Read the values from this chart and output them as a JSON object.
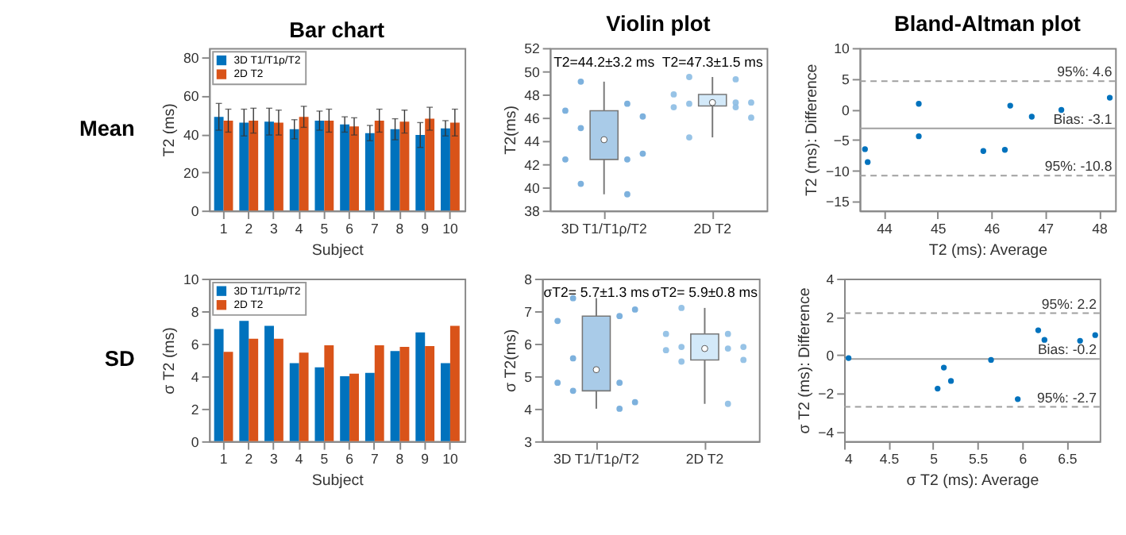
{
  "chart_data": [
    {
      "type": "bar",
      "title": "Bar chart",
      "xlabel": "Subject",
      "ylabel": "T2 (ms)",
      "annotations": [
        "Mean"
      ],
      "categories": [
        "1",
        "2",
        "3",
        "4",
        "5",
        "6",
        "7",
        "8",
        "9",
        "10"
      ],
      "ylim": [
        0,
        85
      ],
      "yticks": [
        0,
        20,
        40,
        60,
        80
      ],
      "legend": "top left",
      "grid": false,
      "series": [
        {
          "name": "3D T1/T1ρ/T2",
          "color": "#0072bd",
          "values": [
            49,
            46,
            46.5,
            42.5,
            47,
            45,
            40.5,
            42.5,
            39.5,
            43
          ],
          "errors": [
            7,
            7,
            7,
            5,
            5,
            4,
            4,
            5.5,
            6.5,
            4
          ]
        },
        {
          "name": "2D T2",
          "color": "#d95319",
          "values": [
            47,
            47,
            46,
            49,
            47,
            44,
            47,
            46.5,
            48,
            46
          ],
          "errors": [
            6,
            6.5,
            6.5,
            5.5,
            6,
            4.5,
            6,
            6,
            6,
            7
          ]
        }
      ]
    },
    {
      "type": "box",
      "title": "Violin plot",
      "ylabel": "T2(ms)",
      "categories": [
        "3D T1/T1ρ/T2",
        "2D T2"
      ],
      "ylim": [
        38,
        52
      ],
      "yticks": [
        38,
        40,
        42,
        44,
        46,
        48,
        50,
        52
      ],
      "colors": [
        "#a9cbe8",
        "#d3e9f9"
      ],
      "grid": false,
      "annotations": [
        "T2=44.2±3.2 ms",
        "T2=47.3±1.5 ms"
      ],
      "boxes": [
        {
          "low": 39.4,
          "q1": 42.4,
          "median": 44.1,
          "q3": 46.6,
          "high": 49.1
        },
        {
          "low": 44.3,
          "q1": 47,
          "median": 47.3,
          "q3": 48,
          "high": 49.5
        }
      ],
      "series": [
        {
          "type": "scatter",
          "color": "#6fa9d9",
          "x": [
            "3D T1/T1ρ/T2",
            "3D T1/T1ρ/T2",
            "3D T1/T1ρ/T2",
            "3D T1/T1ρ/T2",
            "3D T1/T1ρ/T2",
            "3D T1/T1ρ/T2",
            "3D T1/T1ρ/T2",
            "3D T1/T1ρ/T2",
            "3D T1/T1ρ/T2",
            "3D T1/T1ρ/T2"
          ],
          "values": [
            49.1,
            47.2,
            46.6,
            46.1,
            45.1,
            42.4,
            42.4,
            42.9,
            40.3,
            39.4
          ]
        },
        {
          "type": "scatter",
          "color": "#8cbde3",
          "x": [
            "2D T2",
            "2D T2",
            "2D T2",
            "2D T2",
            "2D T2",
            "2D T2",
            "2D T2",
            "2D T2",
            "2D T2",
            "2D T2"
          ],
          "values": [
            49.5,
            49.3,
            48,
            47.3,
            47.2,
            46.9,
            46.9,
            46,
            44.3,
            47.3
          ]
        }
      ]
    },
    {
      "type": "scatter",
      "title": "Bland-Altman plot",
      "xlabel": "T2 (ms): Average",
      "ylabel": "T2 (ms): Difference",
      "xlim": [
        43.55,
        48.3
      ],
      "xticks": [
        44,
        45,
        46,
        47,
        48
      ],
      "ylim": [
        -16.5,
        10
      ],
      "yticks": [
        -15,
        -10,
        -5,
        0,
        5,
        10
      ],
      "grid": false,
      "marker": "circle",
      "x": [
        43.65,
        43.7,
        44.65,
        44.65,
        45.85,
        46.25,
        46.35,
        46.75,
        47.3,
        48.2
      ],
      "values": [
        -6.5,
        -8.6,
        0.9,
        -4.4,
        -6.8,
        -6.6,
        0.6,
        -1.2,
        -0.1,
        1.9
      ],
      "color": "#0072bd",
      "ref_lines": [
        {
          "axis": "y",
          "value": 4.6,
          "label": "95%: 4.6",
          "line_style": "dashed",
          "color": "#a0a0a0"
        },
        {
          "axis": "y",
          "value": -3.1,
          "label": "Bias: -3.1",
          "line_style": "solid",
          "color": "#a0a0a0"
        },
        {
          "axis": "y",
          "value": -10.8,
          "label": "95%: -10.8",
          "line_style": "dashed",
          "color": "#a0a0a0"
        }
      ]
    },
    {
      "type": "bar",
      "xlabel": "Subject",
      "ylabel": "σ T2 (ms)",
      "annotations": [
        "SD"
      ],
      "categories": [
        "1",
        "2",
        "3",
        "4",
        "5",
        "6",
        "7",
        "8",
        "9",
        "10"
      ],
      "ylim": [
        0,
        10
      ],
      "yticks": [
        0,
        2,
        4,
        6,
        8,
        10
      ],
      "legend": "top left",
      "grid": false,
      "series": [
        {
          "name": "3D T1/T1ρ/T2",
          "color": "#0072bd",
          "values": [
            6.9,
            7.4,
            7.1,
            4.8,
            4.55,
            4.0,
            4.2,
            5.55,
            6.7,
            4.8
          ]
        },
        {
          "name": "2D T2",
          "color": "#d95319",
          "values": [
            5.5,
            6.3,
            6.3,
            5.45,
            5.9,
            4.15,
            5.9,
            5.8,
            5.85,
            7.1
          ]
        }
      ]
    },
    {
      "type": "box",
      "ylabel": "σ T2(ms)",
      "categories": [
        "3D T1/T1ρ/T2",
        "2D T2"
      ],
      "ylim": [
        3,
        8
      ],
      "yticks": [
        3,
        4,
        5,
        6,
        7,
        8
      ],
      "colors": [
        "#a9cbe8",
        "#d3e9f9"
      ],
      "grid": false,
      "annotations": [
        "σT2= 5.7±1.3 ms",
        "σT2= 5.9±0.8 ms"
      ],
      "boxes": [
        {
          "low": 4.0,
          "q1": 4.55,
          "median": 5.2,
          "q3": 6.85,
          "high": 7.4
        },
        {
          "low": 4.15,
          "q1": 5.5,
          "median": 5.85,
          "q3": 6.3,
          "high": 7.1
        }
      ],
      "series": [
        {
          "type": "scatter",
          "color": "#6fa9d9",
          "x": [
            "3D T1/T1ρ/T2",
            "3D T1/T1ρ/T2",
            "3D T1/T1ρ/T2",
            "3D T1/T1ρ/T2",
            "3D T1/T1ρ/T2",
            "3D T1/T1ρ/T2",
            "3D T1/T1ρ/T2",
            "3D T1/T1ρ/T2",
            "3D T1/T1ρ/T2",
            "3D T1/T1ρ/T2"
          ],
          "values": [
            7.4,
            6.85,
            6.7,
            7.05,
            5.55,
            4.8,
            4.8,
            4.2,
            4.55,
            4.0
          ]
        },
        {
          "type": "scatter",
          "color": "#8cbde3",
          "x": [
            "2D T2",
            "2D T2",
            "2D T2",
            "2D T2",
            "2D T2",
            "2D T2",
            "2D T2",
            "2D T2",
            "2D T2",
            "2D T2"
          ],
          "values": [
            7.1,
            6.3,
            6.3,
            5.9,
            5.9,
            5.85,
            5.8,
            5.5,
            5.45,
            4.15
          ]
        }
      ]
    },
    {
      "type": "scatter",
      "xlabel": "σ T2 (ms): Average",
      "ylabel": "σ T2 (ms): Difference",
      "xlim": [
        4,
        6.87
      ],
      "xticks": [
        4,
        4.5,
        5,
        5.5,
        6,
        6.5
      ],
      "ylim": [
        -4.5,
        4
      ],
      "yticks": [
        -4,
        -2,
        0,
        2,
        4
      ],
      "grid": false,
      "marker": "circle",
      "x": [
        4.05,
        5.05,
        5.12,
        5.2,
        5.65,
        5.95,
        6.18,
        6.25,
        6.65,
        6.82
      ],
      "values": [
        -0.15,
        -1.75,
        -0.65,
        -1.35,
        -0.25,
        -2.3,
        1.3,
        0.8,
        0.75,
        1.05
      ],
      "color": "#0072bd",
      "ref_lines": [
        {
          "axis": "y",
          "value": 2.2,
          "label": "95%: 2.2",
          "line_style": "dashed",
          "color": "#a0a0a0"
        },
        {
          "axis": "y",
          "value": -0.2,
          "label": "Bias: -0.2",
          "line_style": "solid",
          "color": "#a0a0a0"
        },
        {
          "axis": "y",
          "value": -2.7,
          "label": "95%: -2.7",
          "line_style": "dashed",
          "color": "#a0a0a0"
        }
      ]
    }
  ]
}
